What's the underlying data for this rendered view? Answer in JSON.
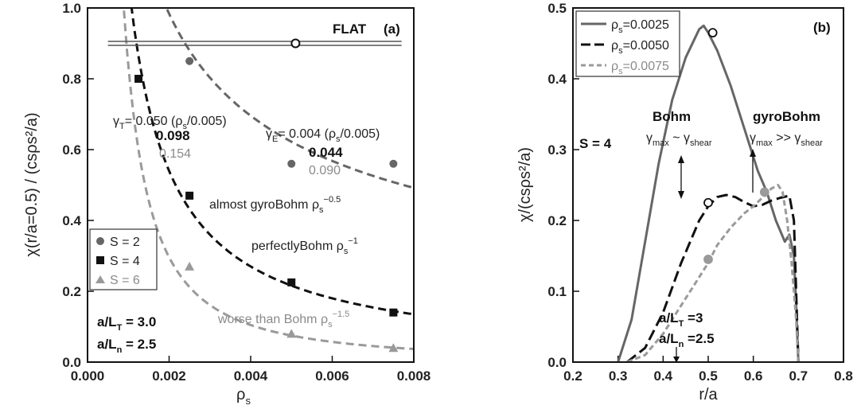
{
  "chart_data": [
    {
      "type": "scatter",
      "panel_label": "(a)",
      "xlabel_main": "ρ",
      "xlabel_sub": "s",
      "ylabel": "χ(r/a=0.5) / (csρs²/a)",
      "xlim": [
        0.0,
        0.008
      ],
      "ylim": [
        0.0,
        1.0
      ],
      "x_ticks": [
        "0.000",
        "0.002",
        "0.004",
        "0.006",
        "0.008"
      ],
      "y_ticks": [
        "0.0",
        "0.2",
        "0.4",
        "0.6",
        "0.8",
        "1.0"
      ],
      "flat_line": {
        "y": 0.9,
        "x": [
          0.0005,
          0.0077
        ],
        "label": "FLAT",
        "marker_x": 0.0051
      },
      "series": [
        {
          "name": "S = 2",
          "color": "#666666",
          "marker": "circle",
          "x": [
            0.0025,
            0.005,
            0.0075
          ],
          "y": [
            0.85,
            0.56,
            0.56
          ]
        },
        {
          "name": "S = 4",
          "color": "#111111",
          "marker": "square",
          "x": [
            0.00125,
            0.0025,
            0.005,
            0.0075
          ],
          "y": [
            0.8,
            0.47,
            0.225,
            0.14
          ]
        },
        {
          "name": "S = 6",
          "color": "#9a9a9a",
          "marker": "triangle",
          "x": [
            0.0025,
            0.005,
            0.0075
          ],
          "y": [
            0.27,
            0.08,
            0.04
          ]
        }
      ],
      "fits": [
        {
          "name": "almost gyroBohm",
          "color": "#666666",
          "coef": 0.044,
          "exponent": -0.5
        },
        {
          "name": "perfectly Bohm",
          "color": "#111111",
          "coef": 0.00108,
          "exponent": -1.0
        },
        {
          "name": "worse than Bohm",
          "color": "#9a9a9a",
          "coef": 2.65e-05,
          "exponent": -1.5
        }
      ],
      "annotations": {
        "gamma_t_label": "γ",
        "gamma_t_sub": "T",
        "gamma_t_rest": "= 0.050 (ρ",
        "gamma_t_tail": "/0.005)",
        "gamma_t_v2": "0.098",
        "gamma_t_v3": "0.154",
        "gamma_e_label": "γ",
        "gamma_e_sub": "E",
        "gamma_e_rest": "= 0.004 (ρ",
        "gamma_e_tail": "/0.005)",
        "gamma_e_v2": "0.044",
        "gamma_e_v3": "0.090",
        "fit1_text": "almost gyroBohm ρ",
        "fit1_exp": "−0.5",
        "fit2_text": "perfectlyBohm ρ",
        "fit2_exp": "−1",
        "fit3_text": "worse than Bohm ρ",
        "fit3_exp": "−1.5",
        "s_sub": "s",
        "aLT": "a/L",
        "aLT_sub": "T",
        "aLT_val": " = 3.0",
        "aLn": "a/L",
        "aLn_sub": "n",
        "aLn_val": " = 2.5"
      }
    },
    {
      "type": "line",
      "panel_label": "(b)",
      "xlabel": "r/a",
      "ylabel": "χ/(csρs²/a)",
      "xlim": [
        0.2,
        0.8
      ],
      "ylim": [
        0.0,
        0.5
      ],
      "x_ticks": [
        "0.2",
        "0.3",
        "0.4",
        "0.5",
        "0.6",
        "0.7",
        "0.8"
      ],
      "y_ticks": [
        "0.0",
        "0.1",
        "0.2",
        "0.3",
        "0.4",
        "0.5"
      ],
      "series": [
        {
          "name": "ρs=0.0025",
          "color": "#666666",
          "dash": "solid",
          "x": [
            0.3,
            0.33,
            0.36,
            0.39,
            0.42,
            0.45,
            0.48,
            0.49,
            0.5,
            0.52,
            0.55,
            0.58,
            0.61,
            0.63,
            0.65,
            0.67,
            0.68,
            0.69,
            0.695,
            0.7
          ],
          "y": [
            0.0,
            0.06,
            0.17,
            0.28,
            0.37,
            0.43,
            0.47,
            0.475,
            0.465,
            0.44,
            0.39,
            0.33,
            0.27,
            0.24,
            0.2,
            0.17,
            0.18,
            0.15,
            0.08,
            0.0
          ]
        },
        {
          "name": "ρs=0.0050",
          "color": "#111111",
          "dash": "long",
          "x": [
            0.32,
            0.36,
            0.4,
            0.44,
            0.48,
            0.5,
            0.52,
            0.54,
            0.56,
            0.58,
            0.6,
            0.62,
            0.64,
            0.66,
            0.68,
            0.69,
            0.695,
            0.7
          ],
          "y": [
            0.0,
            0.02,
            0.07,
            0.14,
            0.2,
            0.22,
            0.233,
            0.236,
            0.233,
            0.226,
            0.22,
            0.222,
            0.228,
            0.232,
            0.235,
            0.2,
            0.1,
            0.0
          ]
        },
        {
          "name": "ρs=0.0075",
          "color": "#9a9a9a",
          "dash": "short",
          "x": [
            0.32,
            0.36,
            0.4,
            0.44,
            0.48,
            0.5,
            0.52,
            0.55,
            0.58,
            0.6,
            0.62,
            0.64,
            0.655,
            0.665,
            0.675,
            0.685,
            0.695,
            0.7
          ],
          "y": [
            0.0,
            0.01,
            0.04,
            0.08,
            0.12,
            0.14,
            0.165,
            0.19,
            0.21,
            0.22,
            0.232,
            0.245,
            0.25,
            0.24,
            0.2,
            0.14,
            0.06,
            0.0
          ]
        }
      ],
      "markers": [
        {
          "series": "ρs=0.0025",
          "x": 0.51,
          "y": 0.465
        },
        {
          "series": "ρs=0.0050",
          "x": 0.5,
          "y": 0.225
        },
        {
          "series": "ρs=0.0075",
          "x": 0.5,
          "y": 0.145
        },
        {
          "series": "ρs=0.0075",
          "x": 0.625,
          "y": 0.24
        }
      ],
      "legend_placement": "top-left",
      "legend_labels": [
        {
          "rho": "ρ",
          "sub": "s",
          "val": "=0.0025"
        },
        {
          "rho": "ρ",
          "sub": "s",
          "val": "=0.0050"
        },
        {
          "rho": "ρ",
          "sub": "s",
          "val": "=0.0075"
        }
      ],
      "annotations": {
        "s_label": "S = 4",
        "bohm": "Bohm",
        "bohm_g1": "γ",
        "bohm_g1_sub": "max",
        "bohm_sim": " ~ γ",
        "bohm_g2_sub": "shear",
        "gyro": "gyroBohm",
        "gyro_g1": "γ",
        "gyro_g1_sub": "max",
        "gyro_gg": " >> γ",
        "gyro_g2_sub": "shear",
        "aLT": "a/L",
        "aLT_sub": "T",
        "aLT_val": " =3",
        "aLn": "a/L",
        "aLn_sub": "n",
        "aLn_val": " =2.5"
      }
    }
  ]
}
